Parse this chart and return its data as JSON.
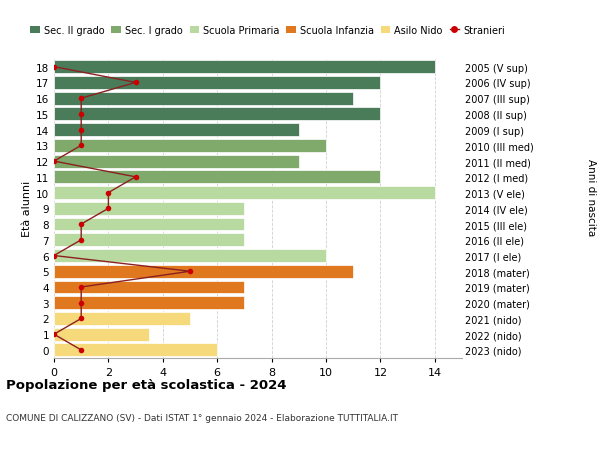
{
  "ages": [
    18,
    17,
    16,
    15,
    14,
    13,
    12,
    11,
    10,
    9,
    8,
    7,
    6,
    5,
    4,
    3,
    2,
    1,
    0
  ],
  "right_labels": [
    "2005 (V sup)",
    "2006 (IV sup)",
    "2007 (III sup)",
    "2008 (II sup)",
    "2009 (I sup)",
    "2010 (III med)",
    "2011 (II med)",
    "2012 (I med)",
    "2013 (V ele)",
    "2014 (IV ele)",
    "2015 (III ele)",
    "2016 (II ele)",
    "2017 (I ele)",
    "2018 (mater)",
    "2019 (mater)",
    "2020 (mater)",
    "2021 (nido)",
    "2022 (nido)",
    "2023 (nido)"
  ],
  "bar_values": [
    14,
    12,
    11,
    12,
    9,
    10,
    9,
    12,
    14,
    7,
    7,
    7,
    10,
    11,
    7,
    7,
    5,
    3.5,
    6
  ],
  "bar_colors": [
    "#4a7c59",
    "#4a7c59",
    "#4a7c59",
    "#4a7c59",
    "#4a7c59",
    "#7faa6b",
    "#7faa6b",
    "#7faa6b",
    "#b8d9a0",
    "#b8d9a0",
    "#b8d9a0",
    "#b8d9a0",
    "#b8d9a0",
    "#e07820",
    "#e07820",
    "#e07820",
    "#f5d97a",
    "#f5d97a",
    "#f5d97a"
  ],
  "stranieri_x": [
    0,
    3,
    1,
    1,
    1,
    1,
    0,
    3,
    2,
    2,
    1,
    1,
    0,
    5,
    1,
    1,
    1,
    0,
    1
  ],
  "stranieri_y": [
    18,
    17,
    16,
    15,
    14,
    13,
    12,
    11,
    10,
    9,
    8,
    7,
    6,
    5,
    4,
    3,
    2,
    1,
    0
  ],
  "legend_labels": [
    "Sec. II grado",
    "Sec. I grado",
    "Scuola Primaria",
    "Scuola Infanzia",
    "Asilo Nido",
    "Stranieri"
  ],
  "legend_colors": [
    "#4a7c59",
    "#7faa6b",
    "#b8d9a0",
    "#e07820",
    "#f5d97a",
    "#8b1a1a"
  ],
  "title": "Popolazione per età scolastica - 2024",
  "subtitle": "COMUNE DI CALIZZANO (SV) - Dati ISTAT 1° gennaio 2024 - Elaborazione TUTTITALIA.IT",
  "ylabel_left": "Età alunni",
  "ylabel_right": "Anni di nascita",
  "xlim": [
    0,
    15
  ],
  "xticks": [
    0,
    2,
    4,
    6,
    8,
    10,
    12,
    14
  ],
  "bg_color": "#ffffff",
  "grid_color": "#d0d0d0",
  "stranieri_line_color": "#8b2020",
  "stranieri_marker_color": "#cc0000"
}
